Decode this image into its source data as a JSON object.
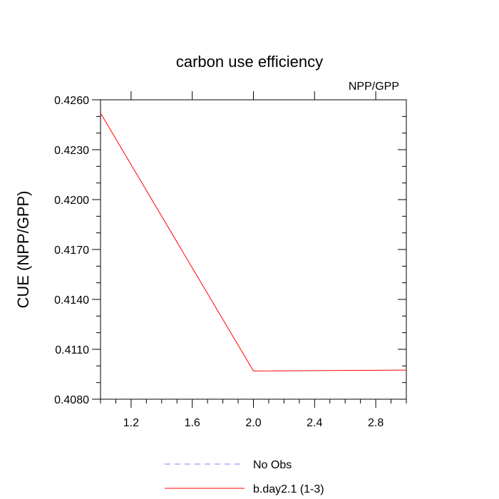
{
  "chart_data": {
    "type": "line",
    "title": "carbon use efficiency",
    "subtitle": "NPP/GPP",
    "xlabel": "",
    "ylabel": "CUE  (NPP/GPP)",
    "xlim": [
      1.0,
      3.0
    ],
    "ylim": [
      0.408,
      0.426
    ],
    "xticks": [
      1.2,
      1.6,
      2.0,
      2.4,
      2.8
    ],
    "xtick_labels": [
      "1.2",
      "1.6",
      "2.0",
      "2.4",
      "2.8"
    ],
    "yticks": [
      0.408,
      0.411,
      0.414,
      0.417,
      0.42,
      0.423,
      0.426
    ],
    "ytick_labels": [
      "0.4080",
      "0.4110",
      "0.4140",
      "0.4170",
      "0.4200",
      "0.4230",
      "0.4260"
    ],
    "grid": false,
    "legend_position": "bottom-center",
    "series": [
      {
        "name": "No Obs",
        "x": [],
        "values": [],
        "color": "#8080ff",
        "dash": "dashed"
      },
      {
        "name": "b.day2.1 (1-3)",
        "x": [
          1.0,
          2.0,
          3.0
        ],
        "values": [
          0.4252,
          0.4097,
          0.40975
        ],
        "color": "#ff0000",
        "dash": "solid"
      }
    ]
  }
}
